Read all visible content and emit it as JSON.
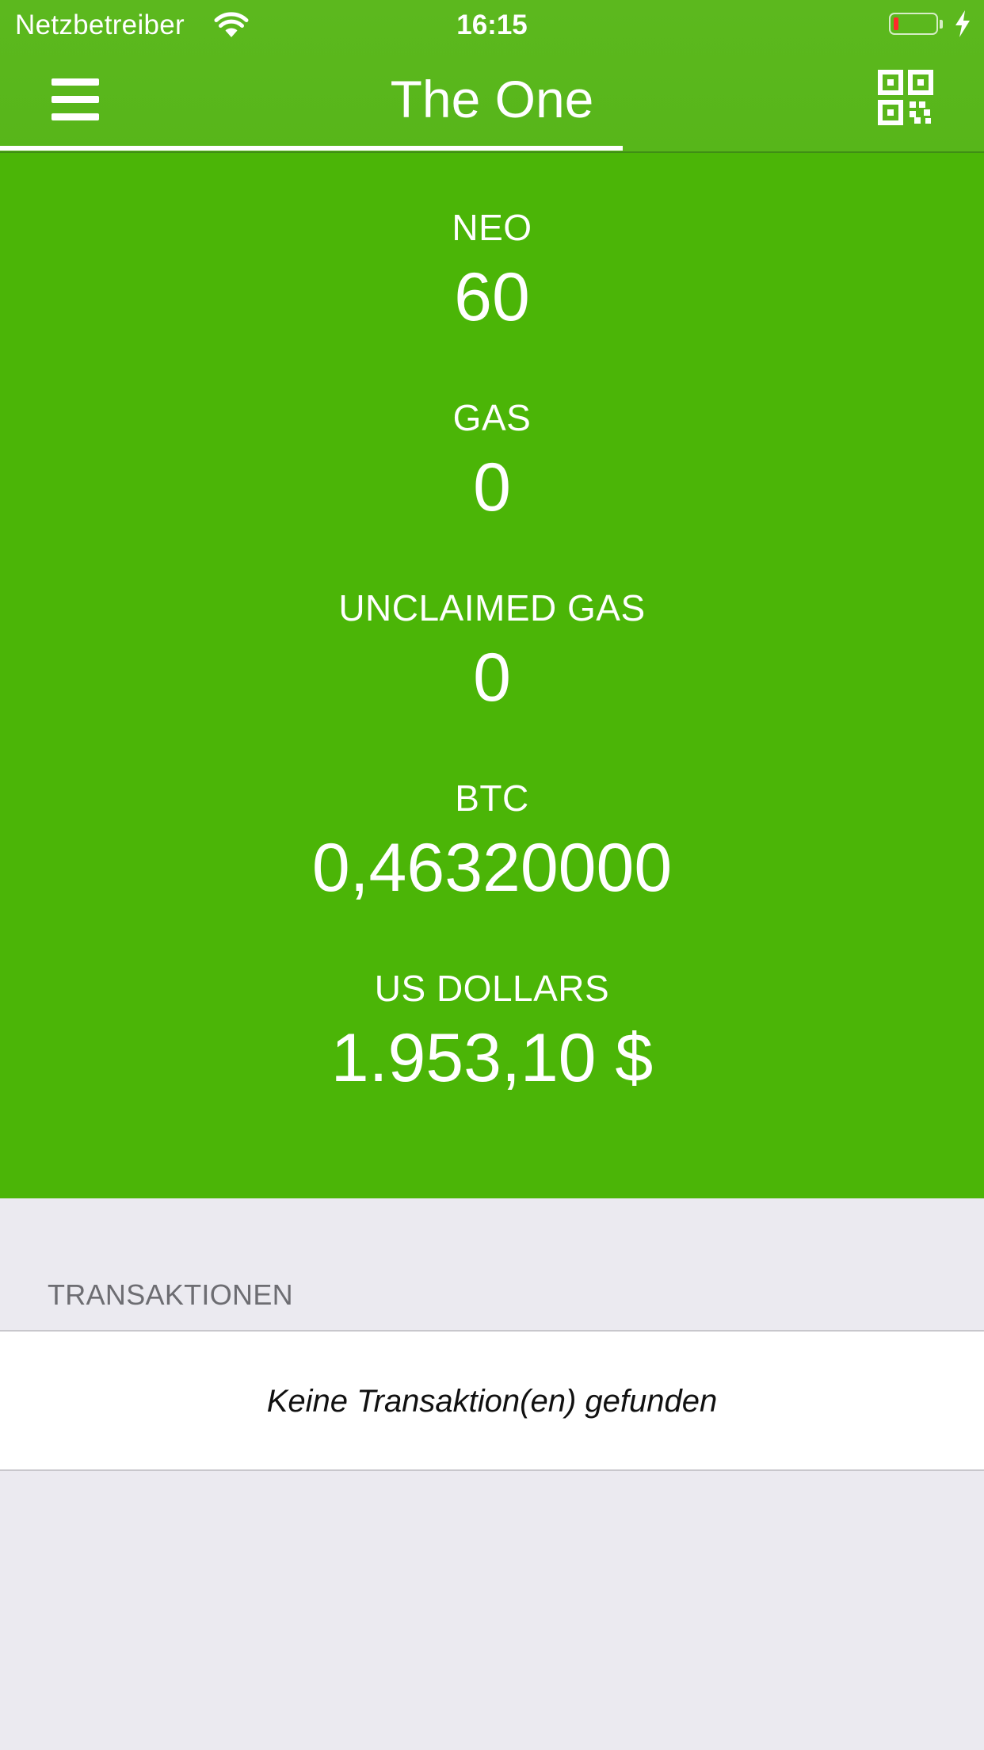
{
  "status_bar": {
    "carrier": "Netzbetreiber",
    "time": "16:15",
    "battery_level": 0.12,
    "battery_color": "#ff2a2a",
    "icons": [
      "wifi-icon",
      "battery-icon",
      "charging-bolt-icon"
    ]
  },
  "nav": {
    "title": "The One",
    "left_icon": "hamburger-menu-icon",
    "right_icon": "qr-code-icon",
    "tint": "#5cb81e"
  },
  "balances": {
    "background": "#4bb507",
    "items": [
      {
        "label": "NEO",
        "value": "60"
      },
      {
        "label": "GAS",
        "value": "0"
      },
      {
        "label": "UNCLAIMED GAS",
        "value": "0"
      },
      {
        "label": "BTC",
        "value": "0,46320000"
      },
      {
        "label": "US DOLLARS",
        "value": "1.953,10 $"
      }
    ]
  },
  "transactions": {
    "header": "TRANSAKTIONEN",
    "empty_text": "Keine Transaktion(en) gefunden"
  }
}
